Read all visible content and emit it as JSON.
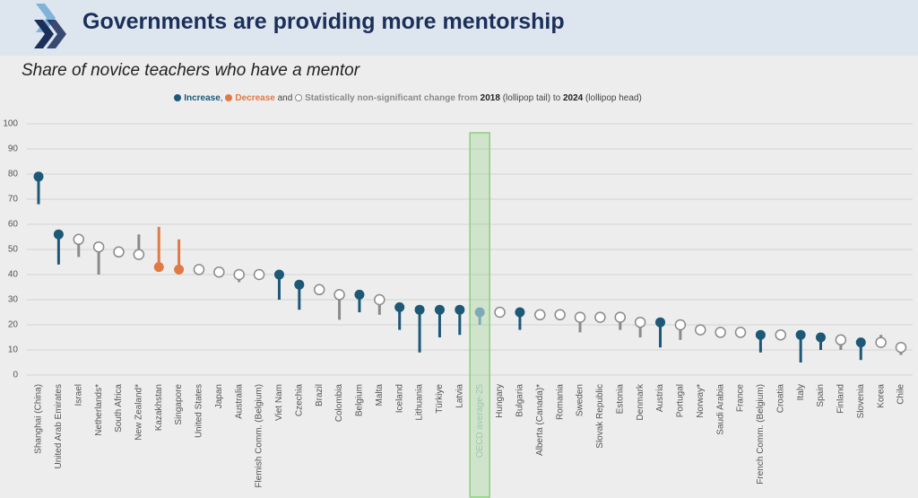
{
  "header": {
    "title": "Governments are providing more mentorship"
  },
  "chart_data": {
    "type": "lollipop",
    "title": "Share of novice teachers who have a mentor",
    "legend_parts": [
      {
        "text": "Increase",
        "color": "#1d5877",
        "marker": "filled"
      },
      {
        "text": ", "
      },
      {
        "text": "Decrease",
        "color": "#e07a45",
        "marker": "filled"
      },
      {
        "text": " and "
      },
      {
        "text": "Statistically non-significant change from ",
        "color": "#8a8a8a",
        "marker": "hollow"
      },
      {
        "text": "2018",
        "bold": true
      },
      {
        "text": " (lollipop tail) to "
      },
      {
        "text": "2024",
        "bold": true
      },
      {
        "text": " (lollipop head)"
      }
    ],
    "categories": [
      "Shanghai (China)",
      "United Arab Emirates",
      "Israel",
      "Netherlands*",
      "South Africa",
      "New Zealand*",
      "Kazakhstan",
      "Singapore",
      "United States",
      "Japan",
      "Australia",
      "Flemish Comm. (Belgium)",
      "Viet Nam",
      "Czechia",
      "Brazil",
      "Colombia",
      "Belgium",
      "Malta",
      "Iceland",
      "Lithuania",
      "Türkiye",
      "Latvia",
      "OECD average-25",
      "Hungary",
      "Bulgaria",
      "Alberta (Canada)*",
      "Romania",
      "Sweden",
      "Slovak Republic",
      "Estonia",
      "Denmark",
      "Austria",
      "Portugal",
      "Norway*",
      "Saudi Arabia",
      "France",
      "French Comm. (Belgium)",
      "Croatia",
      "Italy",
      "Spain",
      "Finland",
      "Slovenia",
      "Korea",
      "Chile"
    ],
    "series": [
      {
        "name": "2018",
        "values": [
          68,
          44,
          47,
          40,
          49,
          56,
          59,
          54,
          42,
          41,
          37,
          40,
          30,
          26,
          34,
          22,
          25,
          24,
          18,
          9,
          15,
          16,
          20,
          25,
          18,
          24,
          24,
          17,
          23,
          18,
          15,
          11,
          14,
          18,
          17,
          17,
          9,
          16,
          5,
          10,
          10,
          6,
          16,
          8
        ]
      },
      {
        "name": "2024",
        "values": [
          79,
          56,
          54,
          51,
          49,
          48,
          43,
          42,
          42,
          41,
          40,
          40,
          40,
          36,
          34,
          32,
          32,
          30,
          27,
          26,
          26,
          26,
          25,
          25,
          25,
          24,
          24,
          23,
          23,
          23,
          21,
          21,
          20,
          18,
          17,
          17,
          16,
          16,
          16,
          15,
          14,
          13,
          13,
          11
        ]
      }
    ],
    "colors": [
      "#1d5877",
      "#1d5877",
      "#8a8a8a",
      "#8a8a8a",
      "#8a8a8a",
      "#8a8a8a",
      "#e07a45",
      "#e07a45",
      "#8a8a8a",
      "#8a8a8a",
      "#8a8a8a",
      "#8a8a8a",
      "#1d5877",
      "#1d5877",
      "#8a8a8a",
      "#8a8a8a",
      "#1d5877",
      "#8a8a8a",
      "#1d5877",
      "#1d5877",
      "#1d5877",
      "#1d5877",
      "#7fa9b6",
      "#8a8a8a",
      "#1d5877",
      "#8a8a8a",
      "#8a8a8a",
      "#8a8a8a",
      "#8a8a8a",
      "#8a8a8a",
      "#8a8a8a",
      "#1d5877",
      "#8a8a8a",
      "#8a8a8a",
      "#8a8a8a",
      "#8a8a8a",
      "#1d5877",
      "#8a8a8a",
      "#1d5877",
      "#1d5877",
      "#8a8a8a",
      "#1d5877",
      "#8a8a8a",
      "#8a8a8a"
    ],
    "filled": [
      true,
      true,
      false,
      false,
      false,
      false,
      true,
      true,
      false,
      false,
      false,
      false,
      true,
      true,
      false,
      false,
      true,
      false,
      true,
      true,
      true,
      true,
      true,
      false,
      true,
      false,
      false,
      false,
      false,
      false,
      false,
      true,
      false,
      false,
      false,
      false,
      true,
      false,
      true,
      true,
      false,
      true,
      false,
      false
    ],
    "highlight_index": 22,
    "highlight_color": "#8ccf7e",
    "ylim": [
      0,
      100
    ],
    "yticks": [
      0,
      10,
      20,
      30,
      40,
      50,
      60,
      70,
      80,
      90,
      100
    ],
    "grid": true
  }
}
